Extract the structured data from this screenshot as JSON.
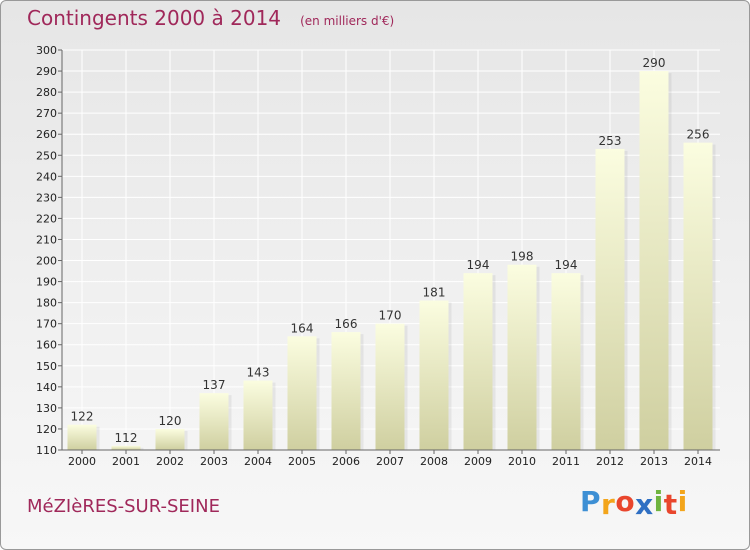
{
  "chart_data": {
    "type": "bar",
    "title": "Contingents 2000 à 2014",
    "subtitle": "(en milliers d'€)",
    "xlabel": "",
    "ylabel": "",
    "categories": [
      "2000",
      "2001",
      "2002",
      "2003",
      "2004",
      "2005",
      "2006",
      "2007",
      "2008",
      "2009",
      "2010",
      "2011",
      "2012",
      "2013",
      "2014"
    ],
    "values": [
      122,
      112,
      120,
      137,
      143,
      164,
      166,
      170,
      181,
      194,
      198,
      194,
      253,
      290,
      256
    ],
    "ylim": [
      110,
      300
    ],
    "yticks": [
      110,
      120,
      130,
      140,
      150,
      160,
      170,
      180,
      190,
      200,
      210,
      220,
      230,
      240,
      250,
      260,
      270,
      280,
      290,
      300
    ],
    "grid": true,
    "legend": "none"
  },
  "commune": "MéZIèRES-SUR-SEINE",
  "logo": {
    "letters": [
      "P",
      "r",
      "o",
      "x",
      "i",
      "t",
      "i"
    ],
    "colors": [
      "#3d8fd4",
      "#f3a51b",
      "#e9462d",
      "#2f6fc3",
      "#6fb43f",
      "#e9462d",
      "#f3a51b"
    ]
  },
  "colors": {
    "title": "#a0285a",
    "bar_top": "#fbfde0",
    "bar_bottom": "#cfcfa0",
    "grid": "#ffffff",
    "axis": "#666666"
  }
}
